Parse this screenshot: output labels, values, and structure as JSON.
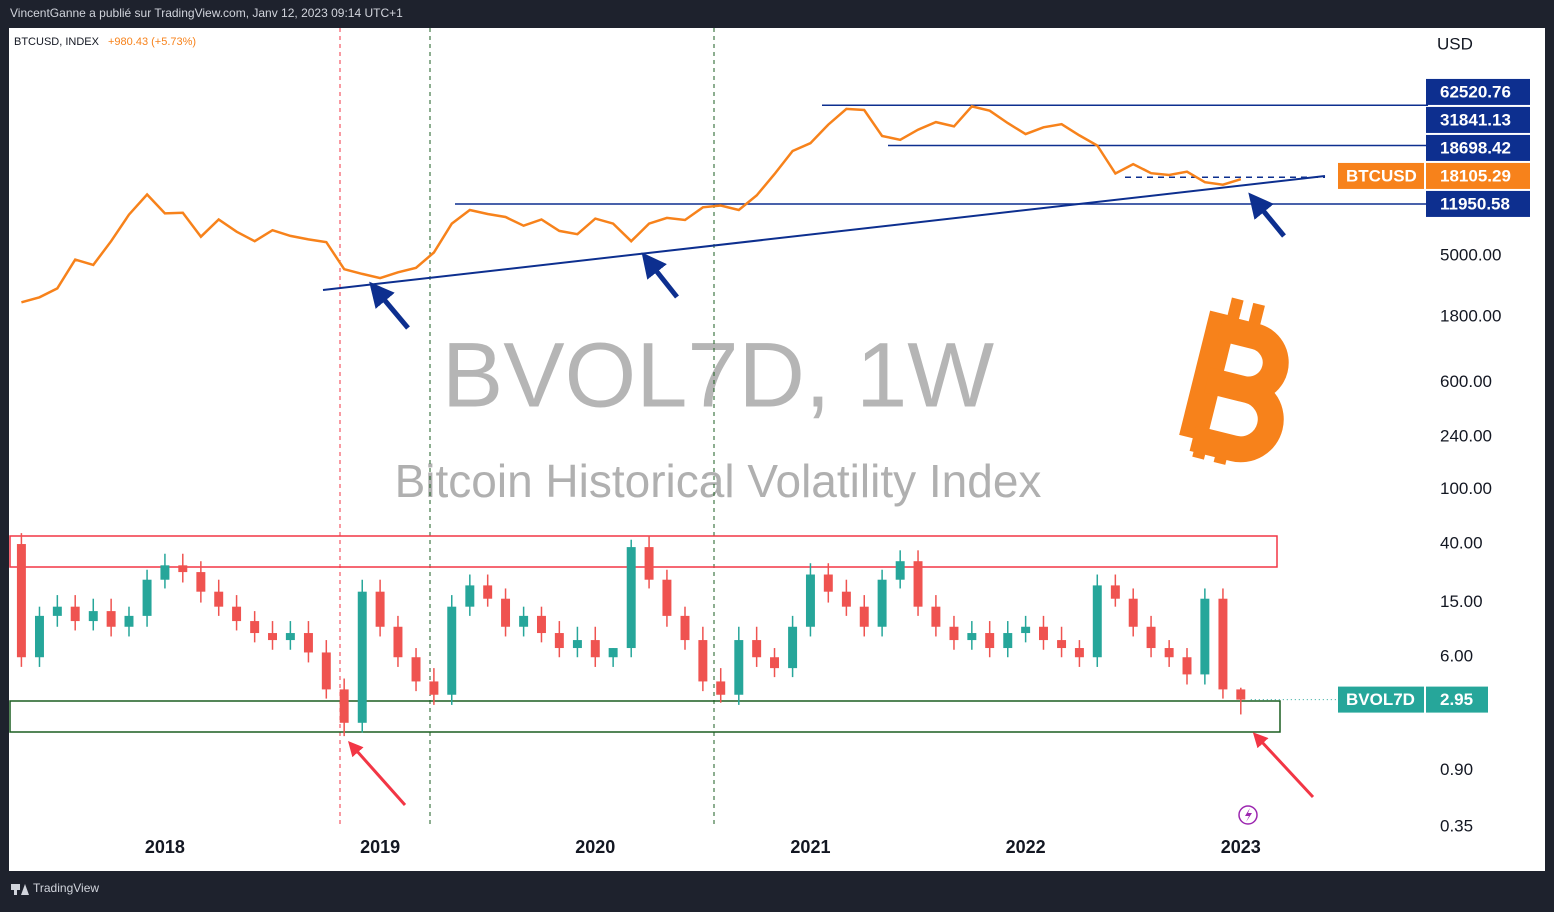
{
  "header": {
    "text": "VincentGanne a publié sur TradingView.com, Janv 12, 2023 09:14 UTC+1"
  },
  "footer": {
    "brand": "TradingView"
  },
  "chart_data": {
    "type": "candlestick",
    "title": "BVOL7D, 1W",
    "subtitle": "Bitcoin Historical Volatility Index",
    "symbol": "BTCUSD, INDEX",
    "change": "+980.43 (+5.73%)",
    "y_label": "USD",
    "log_scale": true,
    "grid": false,
    "xlim": [
      2017.28,
      2023.87
    ],
    "xticks": [
      2018,
      2019,
      2020,
      2021,
      2022,
      2023
    ],
    "ylim": [
      0.343,
      228000
    ],
    "yticks": [
      {
        "value": 0.35,
        "label": "0.35"
      },
      {
        "value": 0.9,
        "label": "0.90"
      },
      {
        "value": 6,
        "label": "6.00"
      },
      {
        "value": 15,
        "label": "15.00"
      },
      {
        "value": 40,
        "label": "40.00"
      },
      {
        "value": 100,
        "label": "100.00"
      },
      {
        "value": 240,
        "label": "240.00"
      },
      {
        "value": 600,
        "label": "600.00"
      },
      {
        "value": 1800,
        "label": "1800.00"
      },
      {
        "value": 5000,
        "label": "5000.00"
      }
    ],
    "levels": [
      62520.76,
      31841.13,
      18698.42,
      11950.58
    ],
    "x": [
      2017.333,
      2017.417,
      2017.5,
      2017.583,
      2017.667,
      2017.75,
      2017.833,
      2017.917,
      2018.0,
      2018.083,
      2018.167,
      2018.25,
      2018.333,
      2018.417,
      2018.5,
      2018.583,
      2018.667,
      2018.75,
      2018.833,
      2018.917,
      2019.0,
      2019.083,
      2019.167,
      2019.25,
      2019.333,
      2019.417,
      2019.5,
      2019.583,
      2019.667,
      2019.75,
      2019.833,
      2019.917,
      2020.0,
      2020.083,
      2020.167,
      2020.25,
      2020.333,
      2020.417,
      2020.5,
      2020.583,
      2020.667,
      2020.75,
      2020.833,
      2020.917,
      2021.0,
      2021.083,
      2021.167,
      2021.25,
      2021.333,
      2021.417,
      2021.5,
      2021.583,
      2021.667,
      2021.75,
      2021.833,
      2021.917,
      2022.0,
      2022.083,
      2022.167,
      2022.25,
      2022.333,
      2022.417,
      2022.5,
      2022.583,
      2022.667,
      2022.75,
      2022.833,
      2022.917,
      2023.0
    ],
    "series": [
      {
        "name": "BTCUSD",
        "type": "line",
        "color": "#f7821b",
        "values": [
          2300,
          2500,
          2900,
          4700,
          4300,
          6400,
          10000,
          14000,
          10200,
          10300,
          6900,
          9200,
          7500,
          6400,
          7700,
          7000,
          6600,
          6300,
          4000,
          3700,
          3450,
          3800,
          4100,
          5300,
          8600,
          10800,
          10100,
          9600,
          8300,
          9200,
          7600,
          7200,
          9350,
          8600,
          6400,
          8600,
          9450,
          9130,
          11300,
          11650,
          10800,
          13800,
          19700,
          29000,
          33100,
          45200,
          58800,
          57700,
          37300,
          35000,
          41500,
          47100,
          43800,
          61300,
          57000,
          46300,
          38500,
          43200,
          45500,
          37700,
          31800,
          19900,
          23300,
          20000,
          19400,
          20500,
          17200,
          16500,
          18105.29
        ]
      },
      {
        "name": "BVOL7D",
        "type": "candlestick",
        "color": "#26a69a",
        "color_down": "#ef5350",
        "open": [
          40,
          6,
          12,
          14,
          11,
          13,
          10,
          12,
          22,
          28,
          25,
          18,
          14,
          11,
          9,
          8,
          9,
          6.5,
          3.5,
          2,
          18,
          10,
          6,
          4,
          3.2,
          14,
          20,
          16,
          10,
          12,
          9,
          7,
          8,
          6,
          7,
          38,
          22,
          12,
          8,
          4,
          3.2,
          8,
          6,
          5,
          10,
          24,
          18,
          14,
          10,
          22,
          30,
          14,
          10,
          8,
          9,
          7,
          9,
          10,
          8,
          7,
          6,
          20,
          16,
          10,
          7,
          6,
          4.5,
          16,
          3.5
        ],
        "high": [
          48,
          14,
          17,
          17,
          16,
          16,
          14,
          26,
          34,
          34,
          30,
          22,
          17,
          13,
          11,
          11,
          11,
          8,
          4.2,
          22,
          22,
          12,
          7,
          5,
          17,
          24,
          24,
          19,
          14,
          14,
          11,
          10,
          10,
          7,
          43,
          46,
          26,
          14,
          10,
          5,
          10,
          10,
          7,
          12,
          29,
          29,
          22,
          17,
          26,
          36,
          36,
          17,
          12,
          11,
          11,
          11,
          12,
          12,
          10,
          8,
          24,
          24,
          19,
          12,
          8,
          7,
          19,
          19,
          3.6
        ],
        "low": [
          5.1,
          5.1,
          10,
          9.4,
          9.4,
          8.5,
          8.5,
          10,
          19,
          21,
          15,
          12,
          9.4,
          7.7,
          6.8,
          6.8,
          5.5,
          3,
          1.6,
          1.7,
          8.5,
          5.1,
          3.4,
          2.7,
          2.7,
          12,
          14,
          8.5,
          8.5,
          7.7,
          6,
          6,
          5.1,
          5.1,
          6,
          19,
          10,
          6.8,
          3.4,
          2.8,
          2.7,
          5.1,
          4.3,
          4.3,
          8.5,
          15,
          12,
          8.5,
          8.5,
          19,
          12,
          8.5,
          6.8,
          6.8,
          6,
          6,
          7.7,
          6.8,
          6,
          5.1,
          5.1,
          14,
          8.5,
          6,
          5.1,
          3.8,
          3.8,
          3,
          2.3
        ],
        "close": [
          6,
          12,
          14,
          11,
          13,
          10,
          12,
          22,
          28,
          25,
          18,
          14,
          11,
          9,
          8,
          9,
          6.5,
          3.5,
          2,
          18,
          10,
          6,
          4,
          3.2,
          14,
          20,
          16,
          10,
          12,
          9,
          7,
          8,
          6,
          7,
          38,
          22,
          12,
          8,
          4,
          3.2,
          8,
          6,
          5,
          10,
          24,
          18,
          14,
          10,
          22,
          30,
          14,
          10,
          8,
          9,
          7,
          9,
          10,
          8,
          7,
          6,
          20,
          16,
          10,
          7,
          6,
          4.5,
          16,
          3.5,
          2.95
        ]
      }
    ]
  }
}
